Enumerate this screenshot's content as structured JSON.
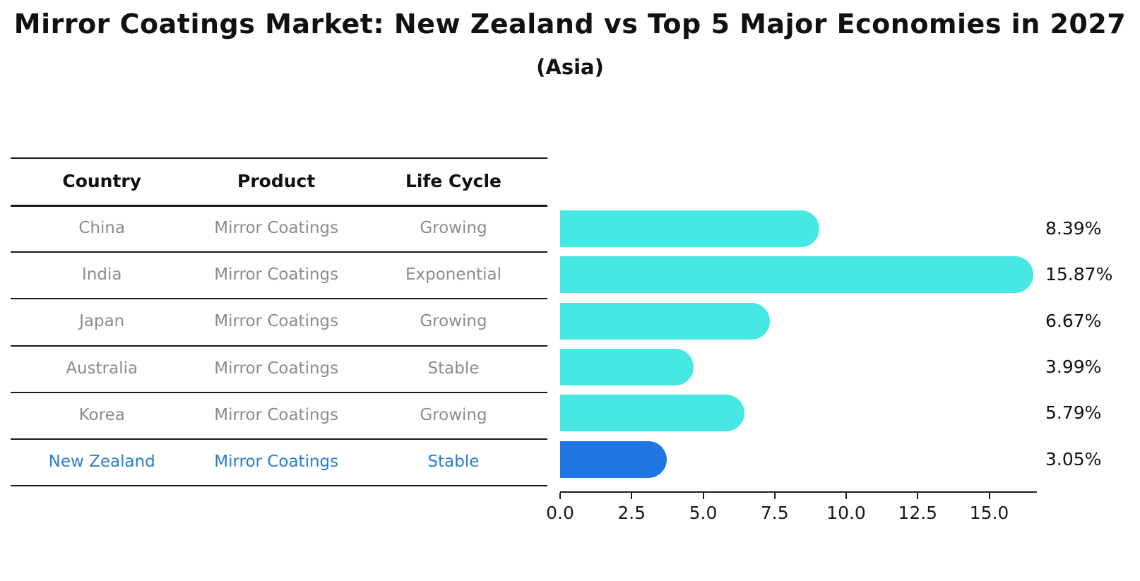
{
  "page": {
    "title": "Mirror Coatings Market: New Zealand vs Top 5 Major Economies in 2027",
    "subtitle": "(Asia)"
  },
  "table": {
    "headers": [
      "Country",
      "Product",
      "Life Cycle"
    ],
    "rows": [
      {
        "country": "China",
        "product": "Mirror Coatings",
        "life_cycle": "Growing",
        "highlight": false
      },
      {
        "country": "India",
        "product": "Mirror Coatings",
        "life_cycle": "Exponential",
        "highlight": false
      },
      {
        "country": "Japan",
        "product": "Mirror Coatings",
        "life_cycle": "Growing",
        "highlight": false
      },
      {
        "country": "Australia",
        "product": "Mirror Coatings",
        "life_cycle": "Stable",
        "highlight": false
      },
      {
        "country": "Korea",
        "product": "Mirror Coatings",
        "life_cycle": "Growing",
        "highlight": false
      },
      {
        "country": "New Zealand",
        "product": "Mirror Coatings",
        "life_cycle": "Stable",
        "highlight": true
      }
    ]
  },
  "chart_data": {
    "type": "bar",
    "orientation": "horizontal",
    "title": "Mirror Coatings Market: New Zealand vs Top 5 Major Economies in 2027",
    "subtitle": "(Asia)",
    "categories": [
      "China",
      "India",
      "Japan",
      "Australia",
      "Korea",
      "New Zealand"
    ],
    "values": [
      8.39,
      15.87,
      6.67,
      3.99,
      5.79,
      3.05
    ],
    "data_labels": [
      "8.39%",
      "15.87%",
      "6.67%",
      "3.99%",
      "5.79%",
      "3.05%"
    ],
    "highlight_index": 5,
    "xlabel": "",
    "ylabel": "",
    "xlim": [
      0,
      16.66
    ],
    "xticks": [
      0.0,
      2.5,
      5.0,
      7.5,
      10.0,
      12.5,
      15.0
    ],
    "xtick_labels": [
      "0.0",
      "2.5",
      "5.0",
      "7.5",
      "10.0",
      "12.5",
      "15.0"
    ],
    "grid": false,
    "legend_position": "none",
    "bar_color": "#47E7E3",
    "highlight_color": "#1E77E0",
    "highlight_edge_color": "#1E77E0",
    "axis_color": "#1a1a1a",
    "row_text_color": "#8c8c8c",
    "highlight_text_color": "#2b7dd2"
  }
}
